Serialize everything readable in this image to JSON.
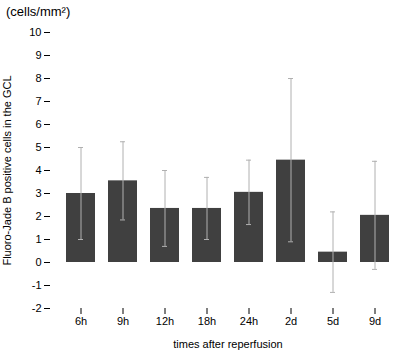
{
  "chart_data": {
    "type": "bar",
    "title": "(cells/mm²)",
    "categories": [
      "6h",
      "9h",
      "12h",
      "18h",
      "24h",
      "2d",
      "5d",
      "9d"
    ],
    "values": [
      3.0,
      3.55,
      2.35,
      2.35,
      3.05,
      4.45,
      0.45,
      2.05
    ],
    "errors": [
      2.0,
      1.7,
      1.65,
      1.35,
      1.4,
      3.55,
      1.75,
      2.35
    ],
    "color": "#404040",
    "error_color": "#b0b0b0",
    "xlabel": "times after reperfusion",
    "ylabel": "Fluoro-Jade B positive cells in the GCL",
    "ylim": [
      -2,
      10
    ],
    "yticks": [
      -2,
      -1,
      0,
      1,
      2,
      3,
      4,
      5,
      6,
      7,
      8,
      9,
      10
    ],
    "grid": false
  }
}
